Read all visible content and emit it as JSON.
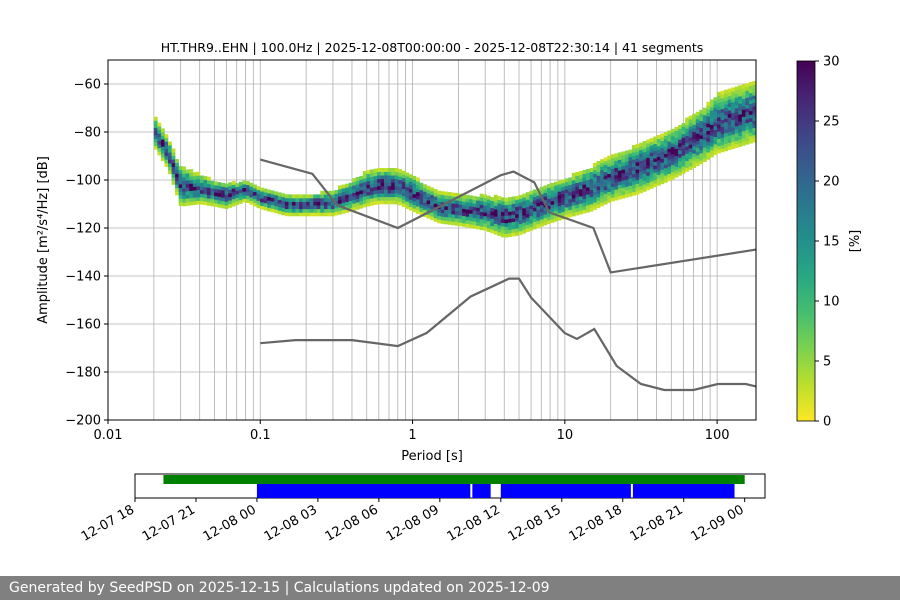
{
  "chart_data": [
    {
      "type": "heatmap",
      "title": "HT.THR9..EHN | 100.0Hz | 2025-12-08T00:00:00 - 2025-12-08T22:30:14 | 41 segments",
      "xlabel": "Period [s]",
      "ylabel": "Amplitude [m²/s⁴/Hz] [dB]",
      "x_scale": "log",
      "xlim": [
        0.01,
        180
      ],
      "ylim": [
        -200,
        -50
      ],
      "xticks": [
        "0.01",
        "0.1",
        "1",
        "10",
        "100"
      ],
      "xtick_values": [
        0.01,
        0.1,
        1,
        10,
        100
      ],
      "yticks": [
        "−60",
        "−80",
        "−100",
        "−120",
        "−140",
        "−160",
        "−180",
        "−200"
      ],
      "ytick_values": [
        -60,
        -80,
        -100,
        -120,
        -140,
        -160,
        -180,
        -200
      ],
      "grid": true,
      "colorbar": {
        "label": "[%]",
        "range": [
          0,
          30
        ],
        "ticks": [
          "0",
          "5",
          "10",
          "15",
          "20",
          "25",
          "30"
        ],
        "tick_values": [
          0,
          5,
          10,
          15,
          20,
          25,
          30
        ],
        "colormap": "viridis_r"
      },
      "psd_mode": {
        "period": [
          0.02,
          0.025,
          0.03,
          0.04,
          0.05,
          0.06,
          0.08,
          0.1,
          0.15,
          0.2,
          0.3,
          0.4,
          0.5,
          0.6,
          0.8,
          1,
          1.5,
          2,
          3,
          4,
          5,
          6,
          8,
          10,
          15,
          20,
          30,
          50,
          80,
          100,
          180
        ],
        "amplitude_db": [
          -80,
          -90,
          -103,
          -104,
          -106,
          -107,
          -105,
          -108,
          -111,
          -111,
          -110,
          -107,
          -104,
          -103,
          -103,
          -106,
          -112,
          -113,
          -114,
          -116,
          -115,
          -113,
          -110,
          -108,
          -104,
          -100,
          -96,
          -90,
          -82,
          -77,
          -72
        ],
        "spread_db": [
          6,
          6,
          8,
          6,
          5,
          5,
          4,
          4,
          4,
          4,
          5,
          6,
          7,
          7,
          7,
          7,
          6,
          6,
          7,
          8,
          8,
          8,
          8,
          8,
          9,
          9,
          10,
          10,
          11,
          12,
          12
        ]
      },
      "noise_models": [
        {
          "period": [
            0.1,
            0.17,
            0.4,
            0.8,
            1.24,
            2.4,
            4.3,
            5,
            6,
            10,
            12,
            15.6,
            21.9,
            31.6,
            45,
            70,
            101,
            154,
            180
          ],
          "amplitude_db": [
            -168,
            -166.7,
            -166.7,
            -169.2,
            -163.7,
            -148.6,
            -141.1,
            -141.1,
            -149,
            -163.8,
            -166.2,
            -162.1,
            -177.5,
            -185,
            -187.5,
            -187.5,
            -185,
            -185,
            -186
          ]
        },
        {
          "period": [
            0.1,
            0.22,
            0.32,
            0.8,
            3.8,
            4.6,
            6.3,
            7.9,
            15.4,
            20,
            180
          ],
          "amplitude_db": [
            -91.5,
            -97.4,
            -110.5,
            -120,
            -98,
            -96.5,
            -101,
            -113.5,
            -120,
            -138.5,
            -129
          ]
        }
      ]
    },
    {
      "type": "timeline",
      "xlim": [
        "2025-12-07 18",
        "2025-12-09 01"
      ],
      "xticks": [
        "12-07 18",
        "12-07 21",
        "12-08 00",
        "12-08 03",
        "12-08 06",
        "12-08 09",
        "12-08 12",
        "12-08 15",
        "12-08 18",
        "12-08 21",
        "12-09 00"
      ],
      "xtick_hours": [
        0,
        3,
        6,
        9,
        12,
        15,
        18,
        21,
        24,
        27,
        30
      ],
      "data_availability": [
        [
          1.4,
          30
        ]
      ],
      "data_availability_color": "#008000",
      "segments": [
        [
          6,
          16.5
        ],
        [
          16.6,
          17.5
        ],
        [
          18,
          24.4
        ],
        [
          24.5,
          29.5
        ]
      ],
      "segments_color": "#0000ff"
    }
  ],
  "footer": "Generated by SeedPSD on 2025-12-15 | Calculations updated on 2025-12-09"
}
